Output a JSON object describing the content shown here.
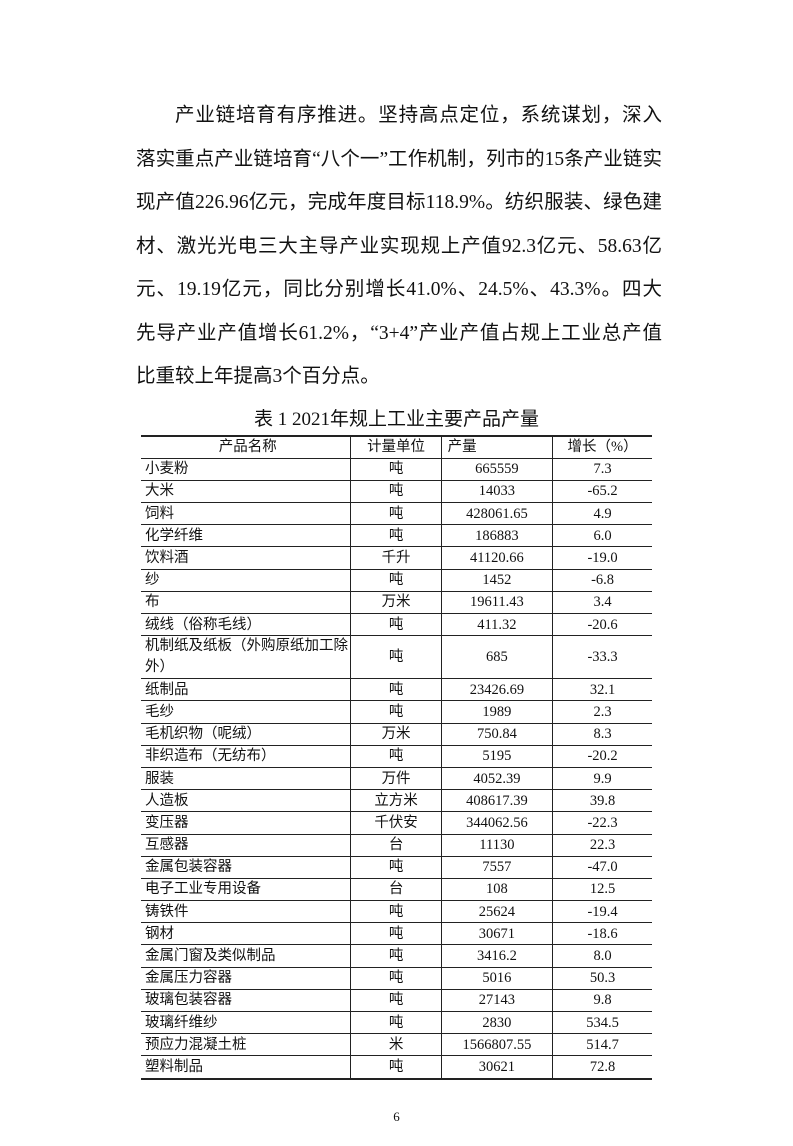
{
  "paragraph": "产业链培育有序推进。坚持高点定位，系统谋划，深入落实重点产业链培育“八个一”工作机制，列市的15条产业链实现产值226.96亿元，完成年度目标118.9%。纺织服装、绿色建材、激光光电三大主导产业实现规上产值92.3亿元、58.63亿元、19.19亿元，同比分别增长41.0%、24.5%、43.3%。四大先导产业产值增长61.2%，“3+4”产业产值占规上工业总产值比重较上年提高3个百分点。",
  "table": {
    "title": "表 1  2021年规上工业主要产品产量",
    "headers": [
      "产品名称",
      "计量单位",
      "产量",
      "增长（%）"
    ],
    "rows": [
      [
        "小麦粉",
        "吨",
        "665559",
        "7.3"
      ],
      [
        "大米",
        "吨",
        "14033",
        "-65.2"
      ],
      [
        "饲料",
        "吨",
        "428061.65",
        "4.9"
      ],
      [
        "化学纤维",
        "吨",
        "186883",
        "6.0"
      ],
      [
        "饮料酒",
        "千升",
        "41120.66",
        "-19.0"
      ],
      [
        "纱",
        "吨",
        "1452",
        "-6.8"
      ],
      [
        "布",
        "万米",
        "19611.43",
        "3.4"
      ],
      [
        "绒线（俗称毛线）",
        "吨",
        "411.32",
        "-20.6"
      ],
      [
        "机制纸及纸板（外购原纸加工除外）",
        "吨",
        "685",
        "-33.3"
      ],
      [
        "纸制品",
        "吨",
        "23426.69",
        "32.1"
      ],
      [
        "毛纱",
        "吨",
        "1989",
        "2.3"
      ],
      [
        "毛机织物（呢绒）",
        "万米",
        "750.84",
        "8.3"
      ],
      [
        "非织造布（无纺布）",
        "吨",
        "5195",
        "-20.2"
      ],
      [
        "服装",
        "万件",
        "4052.39",
        "9.9"
      ],
      [
        "人造板",
        "立方米",
        "408617.39",
        "39.8"
      ],
      [
        "变压器",
        "千伏安",
        "344062.56",
        "-22.3"
      ],
      [
        "互感器",
        "台",
        "11130",
        "22.3"
      ],
      [
        "金属包装容器",
        "吨",
        "7557",
        "-47.0"
      ],
      [
        "电子工业专用设备",
        "台",
        "108",
        "12.5"
      ],
      [
        "铸铁件",
        "吨",
        "25624",
        "-19.4"
      ],
      [
        "钢材",
        "吨",
        "30671",
        "-18.6"
      ],
      [
        "金属门窗及类似制品",
        "吨",
        "3416.2",
        "8.0"
      ],
      [
        "金属压力容器",
        "吨",
        "5016",
        "50.3"
      ],
      [
        "玻璃包装容器",
        "吨",
        "27143",
        "9.8"
      ],
      [
        "玻璃纤维纱",
        "吨",
        "2830",
        "534.5"
      ],
      [
        "预应力混凝土桩",
        "米",
        "1566807.55",
        "514.7"
      ],
      [
        "塑料制品",
        "吨",
        "30621",
        "72.8"
      ]
    ]
  },
  "page_number": "6"
}
